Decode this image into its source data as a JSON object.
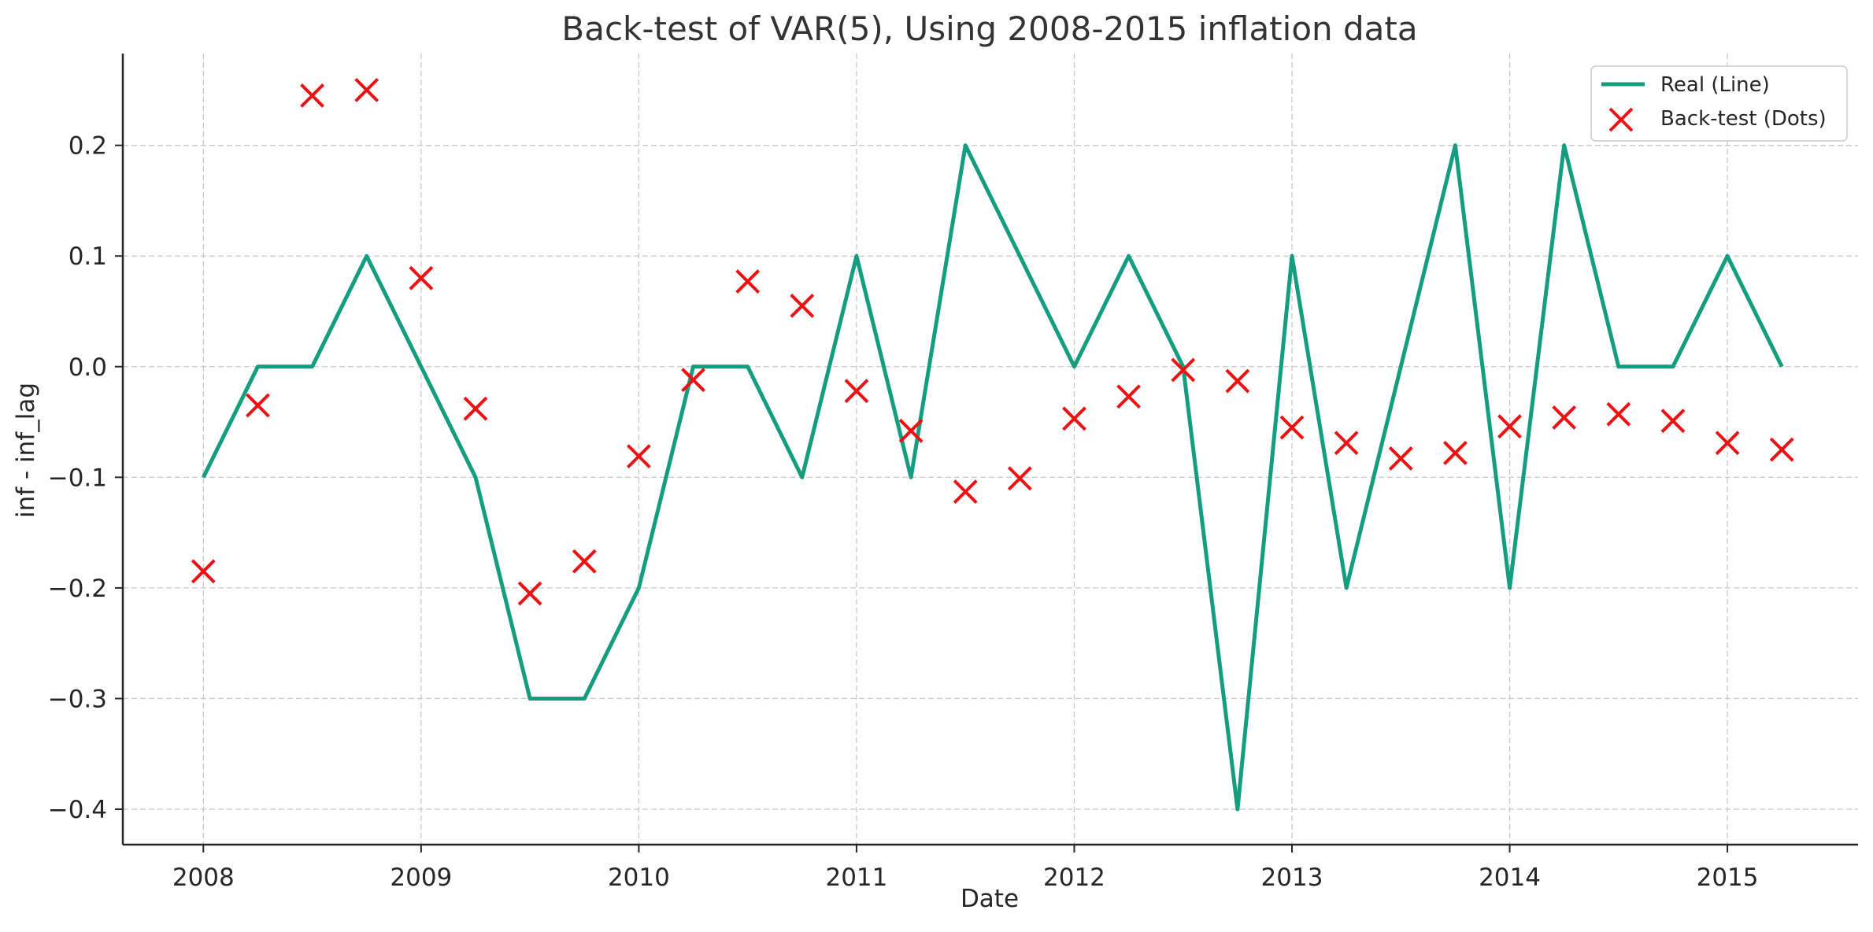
{
  "chart_data": {
    "type": "line",
    "title": "Back-test of VAR(5), Using 2008-2015 inflation data",
    "xlabel": "Date",
    "ylabel": "inf - inf_lag",
    "xlim": [
      2007.63,
      2015.6
    ],
    "ylim": [
      -0.432,
      0.283
    ],
    "grid": true,
    "legend_position": "top-right",
    "x_ticks": [
      2008,
      2009,
      2010,
      2011,
      2012,
      2013,
      2014,
      2015
    ],
    "x_tick_labels": [
      "2008",
      "2009",
      "2010",
      "2011",
      "2012",
      "2013",
      "2014",
      "2015"
    ],
    "y_ticks": [
      0.2,
      0.1,
      0.0,
      -0.1,
      -0.2,
      -0.3,
      -0.4
    ],
    "y_tick_labels": [
      "0.2",
      "0.1",
      "0.0",
      "−0.1",
      "−0.2",
      "−0.3",
      "−0.4"
    ],
    "x": [
      2008.0,
      2008.25,
      2008.5,
      2008.75,
      2009.0,
      2009.25,
      2009.5,
      2009.75,
      2010.0,
      2010.25,
      2010.5,
      2010.75,
      2011.0,
      2011.25,
      2011.5,
      2011.75,
      2012.0,
      2012.25,
      2012.5,
      2012.75,
      2013.0,
      2013.25,
      2013.5,
      2013.75,
      2014.0,
      2014.25,
      2014.5,
      2014.75,
      2015.0,
      2015.25
    ],
    "series": [
      {
        "name": "Real (Line)",
        "style": "line",
        "color": "#149e7f",
        "values": [
          -0.1,
          0.0,
          0.0,
          0.1,
          0.0,
          -0.1,
          -0.3,
          -0.3,
          -0.2,
          0.0,
          0.0,
          -0.1,
          0.1,
          -0.1,
          0.2,
          0.1,
          0.0,
          0.1,
          0.0,
          -0.4,
          0.1,
          -0.2,
          0.0,
          0.2,
          -0.2,
          0.2,
          0.0,
          0.0,
          0.1,
          0.0
        ]
      },
      {
        "name": "Back-test (Dots)",
        "style": "x-marker",
        "color": "#ee1111",
        "values": [
          -0.185,
          -0.035,
          0.245,
          0.25,
          0.08,
          -0.038,
          -0.205,
          -0.176,
          -0.081,
          -0.012,
          0.077,
          0.055,
          -0.022,
          -0.058,
          -0.113,
          -0.101,
          -0.047,
          -0.027,
          -0.003,
          -0.013,
          -0.055,
          -0.069,
          -0.083,
          -0.078,
          -0.054,
          -0.046,
          -0.043,
          -0.049,
          -0.069,
          -0.075
        ]
      }
    ]
  }
}
